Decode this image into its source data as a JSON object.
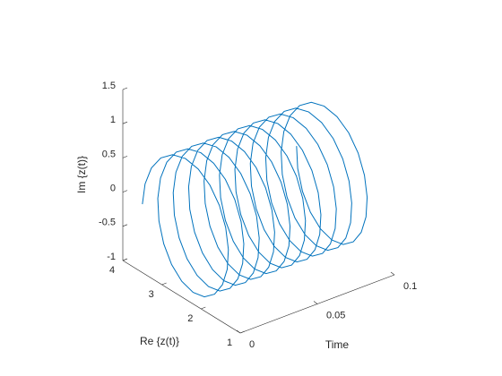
{
  "chart_data": {
    "type": "line3d",
    "xlabel": "Time",
    "ylabel": "Re  {z(t)}",
    "zlabel": "Im  {z(t)}",
    "xlim": [
      0,
      0.1
    ],
    "ylim": [
      1,
      4
    ],
    "zlim": [
      -1,
      1.5
    ],
    "xticks": [
      0,
      0.05,
      0.1
    ],
    "yticks": [
      1,
      2,
      3,
      4
    ],
    "zticks": [
      -1,
      -0.5,
      0,
      0.5,
      1,
      1.5
    ],
    "series": [
      {
        "color": "#0072BD",
        "x": [
          0,
          0.0005,
          0.001,
          0.0015,
          0.002,
          0.0025,
          0.003,
          0.0035,
          0.004,
          0.0045,
          0.005,
          0.0055,
          0.006,
          0.0065,
          0.007,
          0.0075,
          0.008,
          0.0085,
          0.009,
          0.0095,
          0.01,
          0.0105,
          0.011,
          0.0115,
          0.012,
          0.0125,
          0.013,
          0.0135,
          0.014,
          0.0145,
          0.015,
          0.0155,
          0.016,
          0.0165,
          0.017,
          0.0175,
          0.018,
          0.0185,
          0.019,
          0.0195,
          0.02,
          0.0205,
          0.021,
          0.0215,
          0.022,
          0.0225,
          0.023,
          0.0235,
          0.024,
          0.0245,
          0.025,
          0.0255,
          0.026,
          0.0265,
          0.027,
          0.0275,
          0.028,
          0.0285,
          0.029,
          0.0295,
          0.03,
          0.0305,
          0.031,
          0.0315,
          0.032,
          0.0325,
          0.033,
          0.0335,
          0.034,
          0.0345,
          0.035,
          0.0355,
          0.036,
          0.0365,
          0.037,
          0.0375,
          0.038,
          0.0385,
          0.039,
          0.0395,
          0.04,
          0.0405,
          0.041,
          0.0415,
          0.042,
          0.0425,
          0.043,
          0.0435,
          0.044,
          0.0445,
          0.045,
          0.0455,
          0.046,
          0.0465,
          0.047,
          0.0475,
          0.048,
          0.0485,
          0.049,
          0.0495,
          0.05,
          0.0505,
          0.051,
          0.0515,
          0.052,
          0.0525,
          0.053,
          0.0535,
          0.054,
          0.0545,
          0.055,
          0.0555,
          0.056,
          0.0565,
          0.057,
          0.0575,
          0.058,
          0.0585,
          0.059,
          0.0595,
          0.06,
          0.0605,
          0.061,
          0.0615,
          0.062,
          0.0625,
          0.063,
          0.0635,
          0.064,
          0.0645,
          0.065,
          0.0655,
          0.066,
          0.0665,
          0.067,
          0.0675,
          0.068,
          0.0685,
          0.069,
          0.0695,
          0.07,
          0.0705,
          0.071,
          0.0715,
          0.072,
          0.0725,
          0.073,
          0.0735,
          0.074,
          0.0745,
          0.075,
          0.0755,
          0.076,
          0.0765,
          0.077,
          0.0775,
          0.078,
          0.0785,
          0.079,
          0.0795,
          0.08,
          0.0805,
          0.081,
          0.0815,
          0.082,
          0.0825,
          0.083,
          0.0835,
          0.084,
          0.0845,
          0.085,
          0.0855,
          0.086,
          0.0865,
          0.087,
          0.0875,
          0.088,
          0.0885,
          0.089,
          0.0895,
          0.09,
          0.0905,
          0.091,
          0.0915,
          0.092,
          0.0925,
          0.093,
          0.0935,
          0.094,
          0.0945,
          0.095,
          0.0955,
          0.096,
          0.0965,
          0.097,
          0.0975,
          0.098,
          0.0985,
          0.099,
          0.0995,
          0.1
        ],
        "y": [
          3.5,
          3.451,
          3.309,
          3.088,
          2.809,
          2.5,
          2.191,
          1.912,
          1.691,
          1.549,
          1.5,
          1.549,
          1.691,
          1.912,
          2.191,
          2.5,
          2.809,
          3.088,
          3.309,
          3.451,
          3.5,
          3.451,
          3.309,
          3.088,
          2.809,
          2.5,
          2.191,
          1.912,
          1.691,
          1.549,
          1.5,
          1.549,
          1.691,
          1.912,
          2.191,
          2.5,
          2.809,
          3.088,
          3.309,
          3.451,
          3.5,
          3.451,
          3.309,
          3.088,
          2.809,
          2.5,
          2.191,
          1.912,
          1.691,
          1.549,
          1.5,
          1.549,
          1.691,
          1.912,
          2.191,
          2.5,
          2.809,
          3.088,
          3.309,
          3.451,
          3.5,
          3.451,
          3.309,
          3.088,
          2.809,
          2.5,
          2.191,
          1.912,
          1.691,
          1.549,
          1.5,
          1.549,
          1.691,
          1.912,
          2.191,
          2.5,
          2.809,
          3.088,
          3.309,
          3.451,
          3.5,
          3.451,
          3.309,
          3.088,
          2.809,
          2.5,
          2.191,
          1.912,
          1.691,
          1.549,
          1.5,
          1.549,
          1.691,
          1.912,
          2.191,
          2.5,
          2.809,
          3.088,
          3.309,
          3.451,
          3.5,
          3.451,
          3.309,
          3.088,
          2.809,
          2.5,
          2.191,
          1.912,
          1.691,
          1.549,
          1.5,
          1.549,
          1.691,
          1.912,
          2.191,
          2.5,
          2.809,
          3.088,
          3.309,
          3.451,
          3.5,
          3.451,
          3.309,
          3.088,
          2.809,
          2.5,
          2.191,
          1.912,
          1.691,
          1.549,
          1.5,
          1.549,
          1.691,
          1.912,
          2.191,
          2.5,
          2.809,
          3.088,
          3.309,
          3.451,
          3.5,
          3.451,
          3.309,
          3.088,
          2.809,
          2.5,
          2.191,
          1.912,
          1.691,
          1.549,
          1.5,
          1.549,
          1.691,
          1.912,
          2.191,
          2.5,
          2.809,
          3.088,
          3.309,
          3.451,
          3.5,
          3.451,
          3.309,
          3.088,
          2.809,
          2.5,
          2.191,
          1.912,
          1.691,
          1.549,
          1.5,
          1.549,
          1.691,
          1.912,
          2.191,
          2.5,
          2.809,
          3.088,
          3.309,
          3.451,
          3.5,
          3.451,
          3.309,
          3.088,
          2.809,
          2.5,
          2.191,
          1.912,
          1.691,
          1.549,
          1.5,
          1.549,
          1.691,
          1.912,
          2.191,
          2.5,
          2.809,
          3.088,
          3.309,
          3.451,
          3.5
        ],
        "z": [
          0,
          0.309,
          0.588,
          0.809,
          0.951,
          1,
          0.951,
          0.809,
          0.588,
          0.309,
          0,
          -0.309,
          -0.588,
          -0.809,
          -0.951,
          -1,
          -0.951,
          -0.809,
          -0.588,
          -0.309,
          0,
          0.309,
          0.588,
          0.809,
          0.951,
          1,
          0.951,
          0.809,
          0.588,
          0.309,
          0,
          -0.309,
          -0.588,
          -0.809,
          -0.951,
          -1,
          -0.951,
          -0.809,
          -0.588,
          -0.309,
          0,
          0.309,
          0.588,
          0.809,
          0.951,
          1,
          0.951,
          0.809,
          0.588,
          0.309,
          0,
          -0.309,
          -0.588,
          -0.809,
          -0.951,
          -1,
          -0.951,
          -0.809,
          -0.588,
          -0.309,
          0,
          0.309,
          0.588,
          0.809,
          0.951,
          1,
          0.951,
          0.809,
          0.588,
          0.309,
          0,
          -0.309,
          -0.588,
          -0.809,
          -0.951,
          -1,
          -0.951,
          -0.809,
          -0.588,
          -0.309,
          0,
          0.309,
          0.588,
          0.809,
          0.951,
          1,
          0.951,
          0.809,
          0.588,
          0.309,
          0,
          -0.309,
          -0.588,
          -0.809,
          -0.951,
          -1,
          -0.951,
          -0.809,
          -0.588,
          -0.309,
          0,
          0.309,
          0.588,
          0.809,
          0.951,
          1,
          0.951,
          0.809,
          0.588,
          0.309,
          0,
          -0.309,
          -0.588,
          -0.809,
          -0.951,
          -1,
          -0.951,
          -0.809,
          -0.588,
          -0.309,
          0,
          0.309,
          0.588,
          0.809,
          0.951,
          1,
          0.951,
          0.809,
          0.588,
          0.309,
          0,
          -0.309,
          -0.588,
          -0.809,
          -0.951,
          -1,
          -0.951,
          -0.809,
          -0.588,
          -0.309,
          0,
          0.309,
          0.588,
          0.809,
          0.951,
          1,
          0.951,
          0.809,
          0.588,
          0.309,
          0,
          -0.309,
          -0.588,
          -0.809,
          -0.951,
          -1,
          -0.951,
          -0.809,
          -0.588,
          -0.309,
          0,
          0.309,
          0.588,
          0.809,
          0.951,
          1,
          0.951,
          0.809,
          0.588,
          0.309,
          0,
          -0.309,
          -0.588,
          -0.809,
          -0.951,
          -1,
          -0.951,
          -0.809,
          -0.588,
          -0.309,
          0,
          0.309,
          0.588,
          0.809,
          0.951,
          1,
          0.951,
          0.809,
          0.588,
          0.309,
          0,
          -0.309,
          -0.588,
          -0.809,
          -0.951,
          -1,
          -0.951,
          -0.809,
          -0.588,
          -0.309,
          0
        ]
      }
    ]
  }
}
